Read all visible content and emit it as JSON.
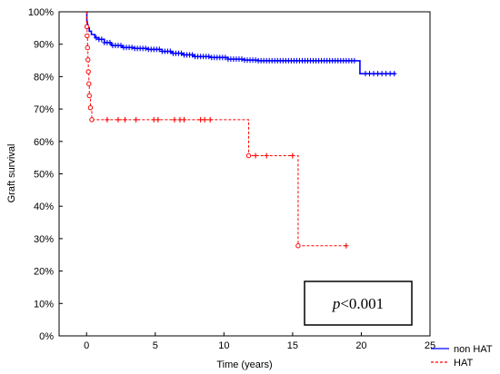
{
  "chart_data": {
    "type": "line",
    "xlabel": "Time (years)",
    "ylabel": "Graft survival",
    "xlim": [
      -2,
      25
    ],
    "ylim": [
      0,
      100
    ],
    "x_ticks": [
      "0",
      "5",
      "10",
      "15",
      "20",
      "25"
    ],
    "y_ticks": [
      "0%",
      "10%",
      "20%",
      "30%",
      "40%",
      "50%",
      "60%",
      "70%",
      "80%",
      "90%",
      "100%"
    ],
    "grid": false,
    "legend_position": "bottom-right",
    "annotation": {
      "italic": "p",
      "text": "<0.001"
    },
    "series": [
      {
        "name": "non HAT",
        "color": "#0000ff",
        "line_style": "solid",
        "steps": [
          [
            0,
            100
          ],
          [
            0.02,
            97
          ],
          [
            0.05,
            96
          ],
          [
            0.1,
            95
          ],
          [
            0.2,
            94
          ],
          [
            0.35,
            93
          ],
          [
            0.6,
            92
          ],
          [
            0.9,
            91.5
          ],
          [
            1.3,
            90.5
          ],
          [
            1.8,
            89.6
          ],
          [
            2.6,
            89
          ],
          [
            3.5,
            88.7
          ],
          [
            4.5,
            88.4
          ],
          [
            5.5,
            87.8
          ],
          [
            6.2,
            87.2
          ],
          [
            7.0,
            86.7
          ],
          [
            7.8,
            86.2
          ],
          [
            9.0,
            85.9
          ],
          [
            10.3,
            85.4
          ],
          [
            11.5,
            85.1
          ],
          [
            12.5,
            84.9
          ],
          [
            19.8,
            84.9
          ],
          [
            19.9,
            80.9
          ],
          [
            22.5,
            80.9
          ]
        ],
        "censored_x": [
          0.7,
          0.9,
          1.1,
          1.3,
          1.5,
          1.7,
          1.9,
          2.1,
          2.3,
          2.5,
          2.7,
          2.9,
          3.1,
          3.3,
          3.5,
          3.7,
          3.9,
          4.1,
          4.3,
          4.5,
          4.7,
          4.9,
          5.1,
          5.3,
          5.5,
          5.7,
          5.9,
          6.1,
          6.3,
          6.5,
          6.7,
          6.9,
          7.1,
          7.3,
          7.5,
          7.7,
          7.9,
          8.1,
          8.3,
          8.5,
          8.7,
          8.9,
          9.1,
          9.3,
          9.5,
          9.7,
          9.9,
          10.1,
          10.3,
          10.5,
          10.7,
          10.9,
          11.1,
          11.3,
          11.5,
          11.7,
          11.9,
          12.1,
          12.3,
          12.5,
          12.7,
          12.9,
          13.1,
          13.3,
          13.5,
          13.7,
          13.9,
          14.1,
          14.3,
          14.5,
          14.7,
          14.9,
          15.1,
          15.3,
          15.5,
          15.7,
          15.9,
          16.1,
          16.3,
          16.5,
          16.7,
          16.9,
          17.1,
          17.3,
          17.5,
          17.7,
          17.9,
          18.1,
          18.3,
          18.5,
          18.7,
          18.9,
          19.1,
          19.3,
          19.5,
          20.3,
          20.6,
          20.9,
          21.2,
          21.5,
          21.8,
          22.1,
          22.4
        ]
      },
      {
        "name": "HAT",
        "color": "#ff0000",
        "line_style": "dashed",
        "steps": [
          [
            0,
            100
          ],
          [
            0.02,
            95.4
          ],
          [
            0.04,
            92.6
          ],
          [
            0.07,
            88.9
          ],
          [
            0.1,
            85.2
          ],
          [
            0.13,
            81.5
          ],
          [
            0.17,
            77.8
          ],
          [
            0.2,
            74.1
          ],
          [
            0.28,
            70.4
          ],
          [
            0.38,
            66.7
          ],
          [
            11.8,
            66.7
          ],
          [
            11.8,
            55.6
          ],
          [
            15.4,
            55.6
          ],
          [
            15.4,
            27.8
          ],
          [
            19.0,
            27.8
          ]
        ],
        "event_x": [
          0.02,
          0.04,
          0.07,
          0.1,
          0.13,
          0.17,
          0.2,
          0.28,
          0.38,
          11.8,
          15.4
        ],
        "censored_x": [
          1.5,
          2.3,
          2.8,
          3.6,
          4.9,
          5.2,
          6.4,
          6.8,
          7.1,
          8.3,
          8.6,
          9.0,
          12.3,
          13.1,
          15.0,
          18.9
        ]
      }
    ]
  }
}
